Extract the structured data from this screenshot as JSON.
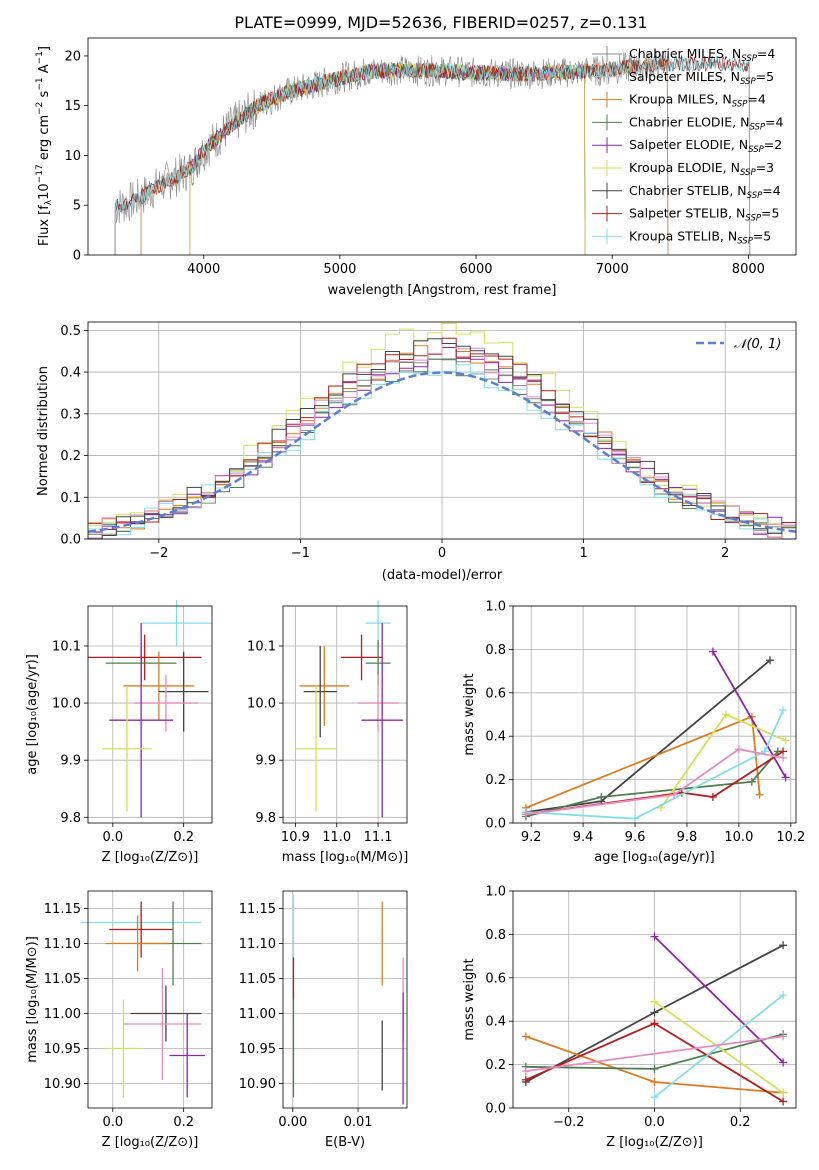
{
  "figure": {
    "title": "PLATE=0999, MJD=52636, FIBERID=0257, z=0.131"
  },
  "colors": {
    "chabrier_miles": "#888888",
    "salpeter_miles": "#c3c3c3",
    "kroupa_miles": "#e07a1f",
    "chabrier_elodie": "#4f7f4f",
    "salpeter_elodie": "#8e24aa",
    "kroupa_elodie": "#d4e157",
    "chabrier_stelib": "#444444",
    "salpeter_stelib": "#b71c1c",
    "kroupa_stelib": "#80deea",
    "pink": "#e78ac3",
    "blue": "#5b7fd6"
  },
  "chart_data": [
    {
      "id": "spectrum",
      "type": "line",
      "xlabel": "wavelength [Angstrom, rest frame]",
      "ylabel": "Flux [fλ10⁻¹⁷ erg cm⁻² s⁻¹ A⁻¹]",
      "xlim": [
        3150,
        8350
      ],
      "ylim": [
        0,
        21.8
      ],
      "xticks": [
        4000,
        5000,
        6000,
        7000,
        8000
      ],
      "yticks": [
        0,
        5,
        10,
        15,
        20
      ],
      "legend": [
        "Chabrier MILES, N_SSP=4",
        "Salpeter MILES, N_SSP=5",
        "Kroupa MILES, N_SSP=4",
        "Chabrier ELODIE, N_SSP=4",
        "Salpeter ELODIE, N_SSP=2",
        "Kroupa ELODIE, N_SSP=3",
        "Chabrier STELIB, N_SSP=4",
        "Salpeter STELIB, N_SSP=5",
        "Kroupa STELIB, N_SSP=5"
      ],
      "legend_placement": "upper right",
      "continuum": {
        "x": [
          3350,
          3500,
          3700,
          3900,
          4000,
          4200,
          4400,
          4600,
          4800,
          5000,
          5200,
          5400,
          5600,
          5800,
          6000,
          6300,
          6600,
          6900,
          7200,
          7400
        ],
        "y": [
          4.8,
          5.5,
          7.2,
          8.6,
          10.5,
          13.0,
          15.0,
          16.3,
          17.0,
          17.8,
          18.4,
          18.6,
          18.5,
          18.5,
          18.3,
          18.2,
          18.3,
          18.5,
          19.0,
          19.2
        ]
      },
      "model_ranges": [
        {
          "name": "Chabrier MILES, N_SSP=4",
          "x_start": 3540,
          "x_end": 7410
        },
        {
          "name": "Salpeter MILES, N_SSP=5",
          "x_start": 3540,
          "x_end": 7410
        },
        {
          "name": "Kroupa MILES, N_SSP=4",
          "x_start": 3540,
          "x_end": 7410
        },
        {
          "name": "Chabrier ELODIE, N_SSP=4",
          "x_start": 3900,
          "x_end": 6800
        },
        {
          "name": "Salpeter ELODIE, N_SSP=2",
          "x_start": 3900,
          "x_end": 6800
        },
        {
          "name": "Kroupa ELODIE, N_SSP=3",
          "x_start": 3900,
          "x_end": 6800
        },
        {
          "name": "Chabrier STELIB, N_SSP=4",
          "x_start": 3350,
          "x_end": 8010
        },
        {
          "name": "Salpeter STELIB, N_SSP=5",
          "x_start": 3350,
          "x_end": 8010
        },
        {
          "name": "Kroupa STELIB, N_SSP=5",
          "x_start": 3350,
          "x_end": 8010
        }
      ]
    },
    {
      "id": "residuals",
      "type": "line",
      "xlabel": "(data-model)/error",
      "ylabel": "Normed distribution",
      "xlim": [
        -2.5,
        2.5
      ],
      "ylim": [
        0,
        0.52
      ],
      "xticks": [
        -2,
        -1,
        0,
        1,
        2
      ],
      "yticks": [
        0.0,
        0.1,
        0.2,
        0.3,
        0.4,
        0.5
      ],
      "grid": true,
      "legend": [
        "𝒩(0, 1)"
      ],
      "legend_placement": "upper right",
      "bin_width": 0.1,
      "series_peaks": [
        0.43,
        0.45,
        0.42,
        0.44,
        0.5,
        0.46,
        0.41,
        0.45,
        0.47
      ]
    },
    {
      "id": "age_vs_z",
      "type": "scatter",
      "xlabel": "Z [log₁₀(Z/Z⊙)]",
      "ylabel": "age  [log₁₀(age/yr)]",
      "xlim": [
        -0.07,
        0.28
      ],
      "ylim": [
        9.79,
        10.17
      ],
      "xticks": [
        0.0,
        0.2
      ],
      "yticks": [
        9.8,
        9.9,
        10.0,
        10.1
      ],
      "grid": true,
      "points": [
        {
          "x": 0.18,
          "y": 10.14,
          "xerr": 0.1,
          "yerr": 0.04
        },
        {
          "x": 0.09,
          "y": 10.08,
          "xerr": 0.16,
          "yerr": 0.04
        },
        {
          "x": 0.08,
          "y": 10.07,
          "xerr": 0.1,
          "yerr": 0.04
        },
        {
          "x": 0.13,
          "y": 10.03,
          "xerr": 0.1,
          "yerr": 0.06
        },
        {
          "x": 0.2,
          "y": 10.02,
          "xerr": 0.07,
          "yerr": 0.07
        },
        {
          "x": 0.15,
          "y": 10.0,
          "xerr": 0.09,
          "yerr": 0.05
        },
        {
          "x": 0.08,
          "y": 9.97,
          "xerr": 0.09,
          "yerr": 0.17
        },
        {
          "x": 0.04,
          "y": 9.92,
          "xerr": 0.07,
          "yerr": 0.11
        }
      ]
    },
    {
      "id": "age_vs_mass",
      "type": "scatter",
      "xlabel": "mass [log₁₀(M/M⊙)]",
      "ylabel": "",
      "xlim": [
        10.87,
        11.17
      ],
      "ylim": [
        9.79,
        10.17
      ],
      "xticks": [
        10.9,
        11.0,
        11.1
      ],
      "yticks": [
        9.8,
        9.9,
        10.0,
        10.1
      ],
      "grid": true,
      "points": [
        {
          "x": 11.1,
          "y": 10.14,
          "xerr": 0.03,
          "yerr": 0.04
        },
        {
          "x": 11.06,
          "y": 10.08,
          "xerr": 0.05,
          "yerr": 0.04
        },
        {
          "x": 11.1,
          "y": 10.07,
          "xerr": 0.03,
          "yerr": 0.04
        },
        {
          "x": 10.97,
          "y": 10.03,
          "xerr": 0.06,
          "yerr": 0.07
        },
        {
          "x": 10.96,
          "y": 10.02,
          "xerr": 0.04,
          "yerr": 0.08
        },
        {
          "x": 11.1,
          "y": 10.0,
          "xerr": 0.05,
          "yerr": 0.05
        },
        {
          "x": 11.11,
          "y": 9.97,
          "xerr": 0.05,
          "yerr": 0.17
        },
        {
          "x": 10.95,
          "y": 9.92,
          "xerr": 0.05,
          "yerr": 0.11
        }
      ]
    },
    {
      "id": "weight_vs_age",
      "type": "line",
      "xlabel": "age  [log₁₀(age/yr)]",
      "ylabel": "mass weight",
      "xlim": [
        9.13,
        10.22
      ],
      "ylim": [
        0,
        1
      ],
      "xticks": [
        9.2,
        9.4,
        9.6,
        9.8,
        10.0,
        10.2
      ],
      "yticks": [
        0.0,
        0.2,
        0.4,
        0.6,
        0.8,
        1.0
      ],
      "grid": true,
      "series": [
        {
          "name": "Chabrier MILES, N_SSP=4",
          "x": [
            9.18,
            9.47,
            10.12
          ],
          "y": [
            0.05,
            0.1,
            0.75
          ]
        },
        {
          "name": "Kroupa MILES, N_SSP=4",
          "x": [
            9.18,
            10.05,
            10.08
          ],
          "y": [
            0.07,
            0.49,
            0.13
          ]
        },
        {
          "name": "Chabrier ELODIE, N_SSP=4",
          "x": [
            9.18,
            9.47,
            10.05,
            10.15
          ],
          "y": [
            0.03,
            0.12,
            0.19,
            0.33
          ]
        },
        {
          "name": "Salpeter ELODIE, N_SSP=2",
          "x": [
            9.9,
            10.18
          ],
          "y": [
            0.79,
            0.21
          ]
        },
        {
          "name": "Kroupa ELODIE, N_SSP=3",
          "x": [
            9.7,
            9.95,
            10.18
          ],
          "y": [
            0.07,
            0.5,
            0.38
          ]
        },
        {
          "name": "Salpeter STELIB, N_SSP=5",
          "x": [
            9.18,
            9.78,
            9.9,
            10.17
          ],
          "y": [
            0.04,
            0.14,
            0.12,
            0.33
          ]
        },
        {
          "name": "Kroupa STELIB, N_SSP=5",
          "x": [
            9.18,
            9.6,
            10.1,
            10.17
          ],
          "y": [
            0.05,
            0.02,
            0.33,
            0.52
          ]
        },
        {
          "name": "pink",
          "x": [
            9.18,
            9.75,
            10.0,
            10.17
          ],
          "y": [
            0.04,
            0.13,
            0.34,
            0.3
          ]
        }
      ]
    },
    {
      "id": "mass_vs_z",
      "type": "scatter",
      "xlabel": "Z [log₁₀(Z/Z⊙)]",
      "ylabel": "mass [log₁₀(M/M⊙)]",
      "xlim": [
        -0.07,
        0.28
      ],
      "ylim": [
        10.865,
        11.175
      ],
      "xticks": [
        0.0,
        0.2
      ],
      "yticks": [
        10.9,
        10.95,
        11.0,
        11.05,
        11.1,
        11.15
      ],
      "grid": true,
      "points": [
        {
          "x": 0.08,
          "y": 11.13,
          "xerr": 0.17,
          "yerr": 0.03
        },
        {
          "x": 0.08,
          "y": 11.12,
          "xerr": 0.09,
          "yerr": 0.04
        },
        {
          "x": 0.17,
          "y": 11.1,
          "xerr": 0.08,
          "yerr": 0.06
        },
        {
          "x": 0.07,
          "y": 11.1,
          "xerr": 0.09,
          "yerr": 0.04
        },
        {
          "x": 0.15,
          "y": 11.0,
          "xerr": 0.1,
          "yerr": 0.04
        },
        {
          "x": 0.14,
          "y": 10.985,
          "xerr": 0.11,
          "yerr": 0.08
        },
        {
          "x": 0.21,
          "y": 10.94,
          "xerr": 0.05,
          "yerr": 0.06
        },
        {
          "x": 0.03,
          "y": 10.95,
          "xerr": 0.05,
          "yerr": 0.07
        }
      ]
    },
    {
      "id": "mass_vs_ebv",
      "type": "scatter",
      "xlabel": "E(B-V)",
      "ylabel": "",
      "xlim": [
        -0.0015,
        0.0175
      ],
      "ylim": [
        10.865,
        11.175
      ],
      "xticks": [
        0.0,
        0.01
      ],
      "yticks": [
        10.9,
        10.95,
        11.0,
        11.05,
        11.1,
        11.15
      ],
      "grid": true,
      "points": [
        {
          "x": 0.0001,
          "y": 11.12,
          "yerr": 0.05
        },
        {
          "x": 0.0001,
          "y": 11.05,
          "yerr": 0.03
        },
        {
          "x": 0.0001,
          "y": 10.95,
          "yerr": 0.07
        },
        {
          "x": 0.0137,
          "y": 11.1,
          "yerr": 0.06
        },
        {
          "x": 0.0137,
          "y": 10.94,
          "yerr": 0.05
        },
        {
          "x": 0.0169,
          "y": 11.02,
          "yerr": 0.06
        },
        {
          "x": 0.0169,
          "y": 10.95,
          "yerr": 0.08
        }
      ]
    },
    {
      "id": "weight_vs_z",
      "type": "line",
      "xlabel": "Z [log₁₀(Z/Z⊙)]",
      "ylabel": "mass weight",
      "xlim": [
        -0.33,
        0.33
      ],
      "ylim": [
        0,
        1
      ],
      "xticks": [
        -0.2,
        0.0,
        0.2
      ],
      "yticks": [
        0.0,
        0.2,
        0.4,
        0.6,
        0.8,
        1.0
      ],
      "grid": true,
      "series": [
        {
          "name": "Chabrier MILES, N_SSP=4",
          "x": [
            -0.3,
            0.0,
            0.3
          ],
          "y": [
            0.12,
            0.44,
            0.75
          ]
        },
        {
          "name": "Kroupa MILES, N_SSP=4",
          "x": [
            -0.3,
            0.0,
            0.3
          ],
          "y": [
            0.33,
            0.12,
            0.07
          ]
        },
        {
          "name": "Chabrier ELODIE, N_SSP=4",
          "x": [
            -0.3,
            0.0,
            0.3
          ],
          "y": [
            0.19,
            0.18,
            0.34
          ]
        },
        {
          "name": "Salpeter ELODIE, N_SSP=2",
          "x": [
            0.0,
            0.3
          ],
          "y": [
            0.79,
            0.21
          ]
        },
        {
          "name": "Kroupa ELODIE, N_SSP=3",
          "x": [
            0.0,
            0.3
          ],
          "y": [
            0.49,
            0.07
          ]
        },
        {
          "name": "Salpeter STELIB, N_SSP=5",
          "x": [
            -0.3,
            0.0,
            0.3
          ],
          "y": [
            0.13,
            0.39,
            0.03
          ]
        },
        {
          "name": "Kroupa STELIB, N_SSP=5",
          "x": [
            0.0,
            0.3
          ],
          "y": [
            0.05,
            0.52
          ]
        },
        {
          "name": "pink",
          "x": [
            -0.3,
            0.3
          ],
          "y": [
            0.17,
            0.33
          ]
        }
      ]
    }
  ]
}
